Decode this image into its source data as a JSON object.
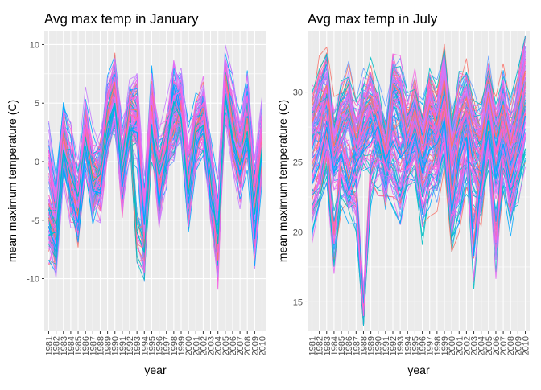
{
  "chart_data": [
    {
      "type": "line",
      "title": "Avg max temp in January",
      "xlabel": "year",
      "ylabel": "mean maximum temperature (C)",
      "x": [
        1981,
        1982,
        1983,
        1984,
        1985,
        1986,
        1987,
        1988,
        1989,
        1990,
        1991,
        1992,
        1993,
        1994,
        1995,
        1996,
        1997,
        1998,
        1999,
        2000,
        2001,
        2002,
        2003,
        2004,
        2005,
        2006,
        2007,
        2008,
        2009,
        2010
      ],
      "ylim": [
        -14.5,
        11.2
      ],
      "yticks": [
        -10,
        -5,
        0,
        5,
        10
      ],
      "ytick_labels": [
        "-10",
        "-5",
        "0",
        "5",
        "10"
      ],
      "series_count": 120,
      "representative_series": [
        {
          "color": "#F8766D",
          "values": [
            -4.8,
            -6.6,
            2.4,
            -1.9,
            -4.6,
            2.6,
            -1.2,
            -1.7,
            4.0,
            6.8,
            -1.1,
            4.5,
            4.4,
            -7.3,
            4.8,
            -2.4,
            1.3,
            2.3,
            4.8,
            -2.4,
            3.0,
            4.6,
            -1.7,
            -8.4,
            7.5,
            3.3,
            -0.1,
            3.7,
            -4.2,
            2.0
          ]
        },
        {
          "color": "#FF61C3",
          "values": [
            -4.5,
            -6.2,
            1.8,
            -2.5,
            -3.6,
            2.8,
            -2.3,
            -2.1,
            3.5,
            6.1,
            -1.7,
            4.0,
            3.8,
            -6.6,
            4.3,
            -2.9,
            1.9,
            2.8,
            5.3,
            -2.0,
            2.4,
            4.0,
            -2.3,
            -7.8,
            6.9,
            2.8,
            -0.7,
            3.2,
            -3.6,
            2.6
          ]
        },
        {
          "color": "#C77CFF",
          "values": [
            -3.2,
            -5.0,
            1.5,
            -1.4,
            -4.0,
            1.7,
            -3.1,
            -0.8,
            3.0,
            5.5,
            -0.4,
            3.3,
            3.0,
            -6.0,
            3.6,
            -1.5,
            0.9,
            4.0,
            4.2,
            -3.0,
            1.8,
            3.4,
            -0.9,
            -6.9,
            6.0,
            2.2,
            0.6,
            2.4,
            -5.0,
            1.5
          ]
        },
        {
          "color": "#00A9FF",
          "values": [
            -5.6,
            -7.4,
            0.9,
            -3.1,
            -5.2,
            1.3,
            -2.5,
            -2.7,
            2.4,
            4.9,
            -2.2,
            2.7,
            2.5,
            -5.4,
            3.2,
            -3.5,
            0.5,
            6.5,
            3.7,
            -3.6,
            1.3,
            2.9,
            -2.8,
            -6.2,
            5.4,
            1.7,
            -1.2,
            2.0,
            -6.6,
            1.0
          ]
        },
        {
          "color": "#00BFC4",
          "values": [
            -6.3,
            -6.0,
            1.0,
            -1.2,
            -3.0,
            2.1,
            -1.7,
            -1.1,
            3.2,
            5.0,
            -0.9,
            3.0,
            -6.0,
            -7.8,
            2.8,
            -1.2,
            1.0,
            5.1,
            3.6,
            -2.8,
            2.5,
            3.1,
            -1.3,
            -7.0,
            5.8,
            2.0,
            -0.3,
            2.6,
            -4.5,
            1.2
          ]
        },
        {
          "color": "#F564E3",
          "values": [
            1.0,
            -3.5,
            3.5,
            1.1,
            -2.6,
            3.6,
            0.6,
            0.9,
            5.3,
            7.2,
            1.0,
            5.3,
            5.6,
            -3.8,
            5.7,
            0.5,
            2.6,
            5.6,
            6.0,
            0.7,
            3.8,
            5.0,
            0.7,
            -4.2,
            8.0,
            5.5,
            1.8,
            5.6,
            -1.8,
            3.8
          ]
        }
      ]
    },
    {
      "type": "line",
      "title": "Avg max temp in July",
      "xlabel": "year",
      "ylabel": "mean maximum temperature (C)",
      "x": [
        1981,
        1982,
        1983,
        1984,
        1985,
        1986,
        1987,
        1988,
        1989,
        1990,
        1991,
        1992,
        1993,
        1994,
        1995,
        1996,
        1997,
        1998,
        1999,
        2000,
        2001,
        2002,
        2003,
        2004,
        2005,
        2006,
        2007,
        2008,
        2009,
        2010
      ],
      "ylim": [
        12.9,
        34.4
      ],
      "yticks": [
        15,
        20,
        25,
        30
      ],
      "ytick_labels": [
        "15",
        "20",
        "25",
        "30"
      ],
      "series_count": 120,
      "representative_series": [
        {
          "color": "#F8766D",
          "values": [
            27.8,
            29.2,
            30.5,
            26.1,
            28.4,
            29.0,
            26.7,
            28.6,
            29.5,
            28.0,
            25.8,
            30.6,
            29.9,
            27.0,
            28.8,
            26.3,
            29.1,
            27.6,
            30.8,
            25.9,
            28.4,
            29.6,
            27.2,
            26.6,
            30.0,
            26.8,
            29.1,
            26.2,
            28.9,
            31.5
          ]
        },
        {
          "color": "#FF61C3",
          "values": [
            26.2,
            27.8,
            29.4,
            25.4,
            27.1,
            28.0,
            25.8,
            27.4,
            28.6,
            27.0,
            24.3,
            29.3,
            28.7,
            25.9,
            27.8,
            25.4,
            27.9,
            26.8,
            29.7,
            24.6,
            27.0,
            28.5,
            26.1,
            25.5,
            28.7,
            25.7,
            27.9,
            25.1,
            27.6,
            30.4
          ]
        },
        {
          "color": "#F564E3",
          "values": [
            21.6,
            23.0,
            25.8,
            19.1,
            24.2,
            22.8,
            22.1,
            14.0,
            24.0,
            25.2,
            24.8,
            23.6,
            22.3,
            24.5,
            25.6,
            21.7,
            23.4,
            24.1,
            26.7,
            21.0,
            22.5,
            25.3,
            24.0,
            22.6,
            26.3,
            19.2,
            25.2,
            22.1,
            24.4,
            27.0
          ]
        },
        {
          "color": "#C77CFF",
          "values": [
            28.6,
            30.1,
            31.4,
            27.2,
            29.0,
            29.8,
            27.5,
            29.1,
            30.2,
            29.0,
            26.4,
            31.1,
            30.4,
            27.8,
            29.5,
            27.3,
            29.6,
            28.4,
            31.6,
            26.7,
            29.2,
            30.1,
            28.0,
            27.5,
            30.6,
            27.6,
            29.9,
            27.3,
            29.7,
            33.3
          ]
        },
        {
          "color": "#00A9FF",
          "values": [
            23.4,
            24.8,
            27.5,
            24.2,
            25.6,
            22.9,
            24.9,
            25.8,
            26.4,
            27.6,
            25.1,
            26.5,
            25.3,
            26.0,
            27.1,
            24.2,
            25.9,
            26.3,
            28.0,
            21.3,
            25.1,
            26.8,
            18.3,
            24.0,
            27.2,
            23.8,
            26.3,
            23.5,
            25.6,
            28.3
          ]
        }
      ]
    }
  ],
  "palette": [
    "#F8766D",
    "#FF61C3",
    "#F564E3",
    "#C77CFF",
    "#619CFF",
    "#00A9FF",
    "#00BFC4",
    "#E76BF3"
  ]
}
